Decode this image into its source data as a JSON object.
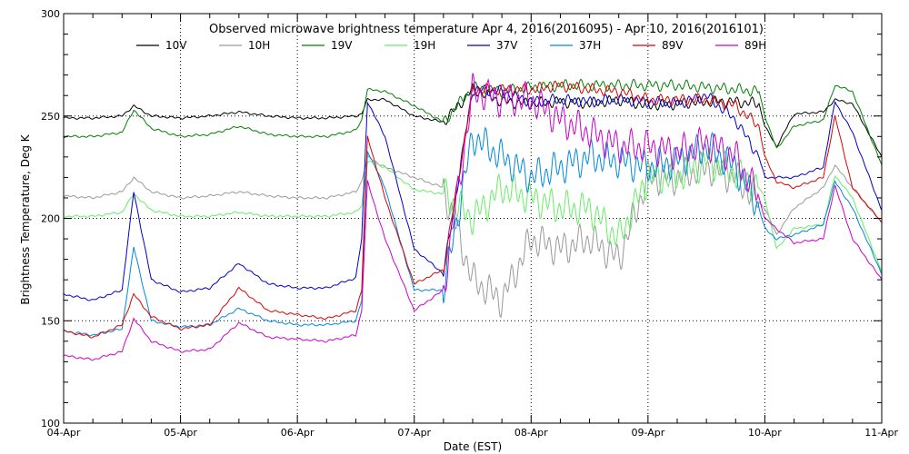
{
  "chart_data": {
    "type": "line",
    "title": "Observed microwave brightness temperature Apr  4, 2016(2016095) - Apr 10, 2016(2016101)",
    "xlabel": "Date (EST)",
    "ylabel": "Brightness Temperature, Deg K",
    "xlim": [
      0,
      7
    ],
    "ylim": [
      100,
      300
    ],
    "yticks": [
      100,
      150,
      200,
      250,
      300
    ],
    "xtick_labels": [
      "04-Apr",
      "05-Apr",
      "06-Apr",
      "07-Apr",
      "08-Apr",
      "09-Apr",
      "10-Apr",
      "11-Apr"
    ],
    "reference_lines": [
      150,
      200,
      250
    ],
    "x": [
      0,
      0.25,
      0.5,
      0.6,
      0.75,
      1,
      1.25,
      1.5,
      1.75,
      2,
      2.25,
      2.5,
      2.55,
      2.6,
      2.75,
      3,
      3.25,
      3.5,
      3.75,
      4,
      4.25,
      4.5,
      4.75,
      5,
      5.25,
      5.5,
      5.75,
      5.95,
      6,
      6.1,
      6.25,
      6.5,
      6.6,
      6.75,
      7
    ],
    "series": [
      {
        "name": "10V",
        "color": "#000000",
        "values": [
          249,
          249,
          250,
          255,
          250,
          249,
          250,
          252,
          250,
          249,
          249,
          250,
          251,
          258,
          258,
          250,
          247,
          263,
          257,
          256,
          257,
          256,
          258,
          255,
          256,
          257,
          257,
          256,
          245,
          235,
          251,
          252,
          258,
          256,
          230
        ]
      },
      {
        "name": "10H",
        "color": "#999999",
        "values": [
          211,
          210,
          213,
          220,
          213,
          210,
          211,
          213,
          211,
          210,
          210,
          213,
          218,
          230,
          225,
          220,
          215,
          170,
          160,
          190,
          185,
          190,
          180,
          220,
          220,
          225,
          220,
          208,
          205,
          192,
          205,
          215,
          226,
          215,
          198
        ]
      },
      {
        "name": "19V",
        "color": "#008000",
        "values": [
          240,
          240,
          242,
          253,
          244,
          240,
          241,
          245,
          241,
          240,
          240,
          243,
          248,
          263,
          262,
          255,
          247,
          264,
          262,
          264,
          265,
          265,
          265,
          265,
          265,
          264,
          263,
          262,
          250,
          234,
          245,
          248,
          265,
          262,
          226
        ]
      },
      {
        "name": "19H",
        "color": "#66ee66",
        "values": [
          201,
          201,
          203,
          212,
          204,
          201,
          201,
          203,
          201,
          201,
          201,
          203,
          206,
          228,
          225,
          214,
          212,
          200,
          215,
          210,
          205,
          205,
          190,
          220,
          220,
          228,
          222,
          215,
          210,
          185,
          195,
          197,
          221,
          210,
          174
        ]
      },
      {
        "name": "37V",
        "color": "#0000cc",
        "values": [
          163,
          160,
          165,
          213,
          170,
          164,
          166,
          178,
          168,
          166,
          166,
          171,
          190,
          257,
          240,
          185,
          173,
          263,
          262,
          257,
          258,
          257,
          258,
          257,
          256,
          260,
          248,
          230,
          220,
          220,
          220,
          225,
          257,
          242,
          204
        ]
      },
      {
        "name": "37H",
        "color": "#0088dd",
        "values": [
          145,
          143,
          146,
          186,
          150,
          147,
          148,
          156,
          150,
          148,
          148,
          150,
          160,
          233,
          215,
          165,
          165,
          240,
          230,
          220,
          225,
          230,
          228,
          225,
          228,
          235,
          225,
          205,
          195,
          190,
          192,
          197,
          218,
          205,
          173
        ]
      },
      {
        "name": "89V",
        "color": "#dd0000",
        "values": [
          145,
          142,
          148,
          163,
          152,
          146,
          148,
          166,
          155,
          153,
          151,
          155,
          165,
          240,
          210,
          168,
          175,
          263,
          263,
          263,
          265,
          263,
          262,
          258,
          258,
          258,
          255,
          245,
          230,
          218,
          215,
          220,
          250,
          215,
          198
        ]
      },
      {
        "name": "89H",
        "color": "#cc00cc",
        "values": [
          133,
          131,
          135,
          151,
          140,
          135,
          136,
          149,
          142,
          141,
          140,
          143,
          155,
          218,
          190,
          155,
          165,
          262,
          258,
          258,
          248,
          242,
          235,
          235,
          232,
          237,
          230,
          210,
          200,
          195,
          188,
          190,
          216,
          190,
          170
        ]
      }
    ]
  }
}
